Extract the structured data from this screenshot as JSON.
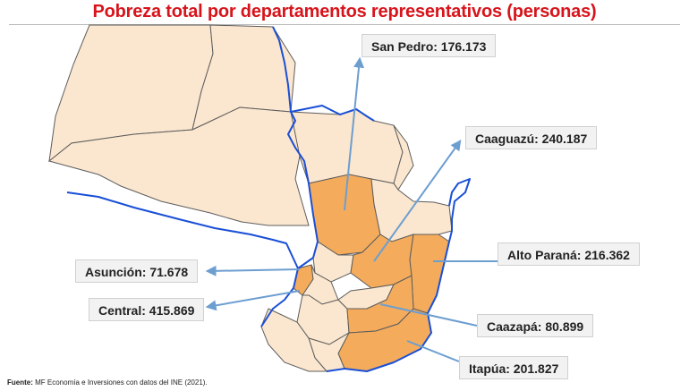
{
  "title": "Pobreza total por departamentos representativos (personas)",
  "labels": {
    "san_pedro": "San Pedro: 176.173",
    "caaguazu": "Caaguazú: 240.187",
    "alto_parana": "Alto Paraná: 216.362",
    "asuncion": "Asunción: 71.678",
    "central": "Central: 415.869",
    "caazapa": "Caazapá: 80.899",
    "itapua": "Itapúa: 201.827"
  },
  "source": {
    "prefix": "Fuente:",
    "text": "MF Economía e Inversiones con datos del INE (2021)."
  },
  "colors": {
    "title": "#d7141b",
    "highlight": "#f4ac5c",
    "base": "#fbe7cf",
    "border": "#5d5d5d",
    "river": "#1a4fd6",
    "arrow": "#6d9ed0"
  }
}
